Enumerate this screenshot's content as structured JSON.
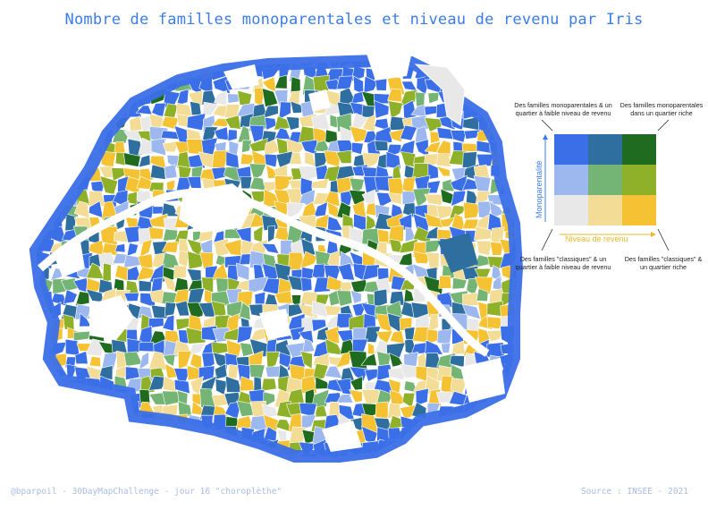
{
  "title": "Nombre de familles monoparentales et niveau de revenu par Iris",
  "footer": {
    "credit": "@bparpoil - 30DayMapChallenge - jour 16 \"choroplèthe\"",
    "source": "Source : INSEE - 2021"
  },
  "legend": {
    "top_left": "Des familles monoparentales & un quartier à faible niveau de revenu",
    "top_right": "Des familles monoparentales dans un quartier riche",
    "bottom_left": "Des familles \"classiques\" & un quartier à faible niveau de revenu",
    "bottom_right": "Des familles \"classiques\" & un quartier riche",
    "y_axis": "Monoparentalité",
    "x_axis": "Niveau de revenu",
    "grid_colors": [
      [
        "#3b6fe8",
        "#2e6fa0",
        "#1f6b1f"
      ],
      [
        "#9cb8ee",
        "#74b474",
        "#8fb12a"
      ],
      [
        "#e8e8e8",
        "#f2dc96",
        "#f4c232"
      ]
    ]
  },
  "map": {
    "palette": [
      "#3b6fe8",
      "#2e6fa0",
      "#1f6b1f",
      "#9cb8ee",
      "#74b474",
      "#8fb12a",
      "#e8e8e8",
      "#f2dc96",
      "#f4c232"
    ]
  }
}
